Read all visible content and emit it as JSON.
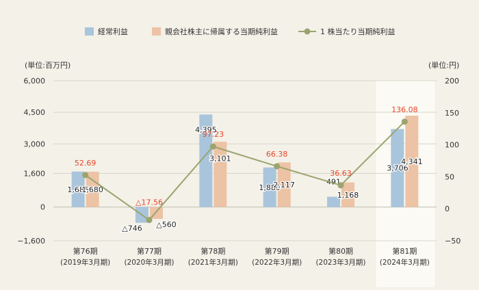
{
  "chart_data": {
    "type": "bar",
    "categories": [
      "第76期",
      "第77期",
      "第78期",
      "第79期",
      "第80期",
      "第81期"
    ],
    "category_sublabels": [
      "(2019年3月期)",
      "(2020年3月期)",
      "(2021年3月期)",
      "(2022年3月期)",
      "(2023年3月期)",
      "(2024年3月期)"
    ],
    "highlighted_category": "第81期",
    "y_left": {
      "unit_label": "(単位:百万円)",
      "ylim": [
        -1600,
        6000
      ],
      "ticks": [
        6000,
        4500,
        3000,
        1600,
        0,
        -1600
      ],
      "tick_labels": [
        "6,000",
        "4,500",
        "3,000",
        "1,600",
        "0",
        "−1,600"
      ]
    },
    "y_right": {
      "unit_label": "(単位:円)",
      "ylim": [
        -50,
        200
      ],
      "ticks": [
        200,
        150,
        100,
        50,
        0,
        -50
      ],
      "tick_labels": [
        "200",
        "150",
        "100",
        "50",
        "0",
        "−50"
      ]
    },
    "series": [
      {
        "name": "経常利益",
        "type": "bar",
        "axis": "left",
        "color": "#a9c5dc",
        "values": [
          1685,
          -746,
          4395,
          1880,
          491,
          3706
        ],
        "labels": [
          "1,685",
          "△746",
          "4,395",
          "1,880",
          "491",
          "3,706"
        ]
      },
      {
        "name": "親会社株主に帰属する当期純利益",
        "type": "bar",
        "axis": "left",
        "color": "#ecc3a5",
        "values": [
          1680,
          -560,
          3101,
          2117,
          1168,
          4341
        ],
        "labels": [
          "1,680",
          "△560",
          "3,101",
          "2,117",
          "1,168",
          "4,341"
        ]
      },
      {
        "name": "1 株当たり当期純利益",
        "type": "line",
        "axis": "right",
        "color": "#9aa46e",
        "label_color": "#e8452a",
        "values": [
          52.69,
          -17.56,
          97.23,
          66.38,
          36.63,
          136.08
        ],
        "labels": [
          "52.69",
          "△17.56",
          "97.23",
          "66.38",
          "36.63",
          "136.08"
        ]
      }
    ],
    "grid": true,
    "legend_position": "top"
  }
}
